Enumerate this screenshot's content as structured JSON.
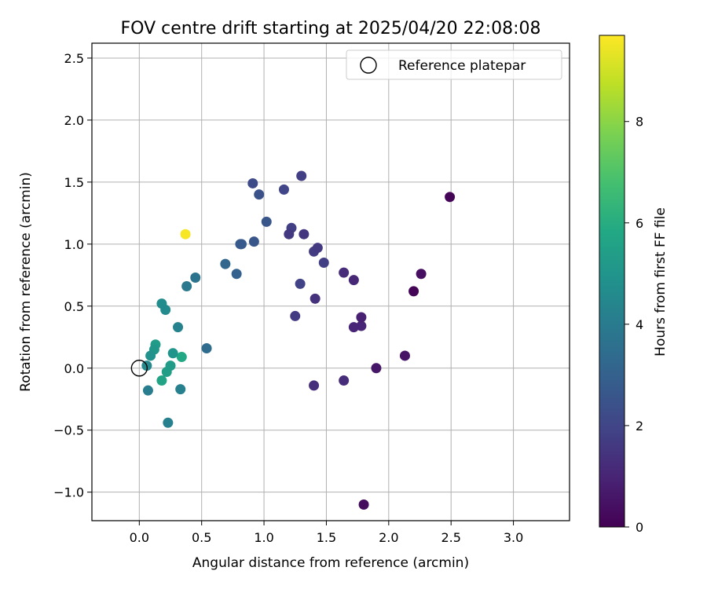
{
  "chart_data": {
    "type": "scatter",
    "title": "FOV centre drift starting at 2025/04/20 22:08:08",
    "xlabel": "Angular distance from reference (arcmin)",
    "ylabel": "Rotation from reference (arcmin)",
    "xlim": [
      -0.38,
      3.45
    ],
    "ylim": [
      -1.23,
      2.62
    ],
    "x_ticks": [
      0.0,
      0.5,
      1.0,
      1.5,
      2.0,
      2.5,
      3.0
    ],
    "x_tick_labels": [
      "0.0",
      "0.5",
      "1.0",
      "1.5",
      "2.0",
      "2.5",
      "3.0"
    ],
    "y_ticks": [
      -1.0,
      -0.5,
      0.0,
      0.5,
      1.0,
      1.5,
      2.0,
      2.5
    ],
    "y_tick_labels": [
      "−1.0",
      "−0.5",
      "0.0",
      "0.5",
      "1.0",
      "1.5",
      "2.0",
      "2.5"
    ],
    "grid": true,
    "legend": {
      "placement": "top-right",
      "entries": [
        {
          "label": "Reference platepar",
          "marker": "open-circle"
        }
      ]
    },
    "reference_point": {
      "x": 0.0,
      "y": 0.0
    },
    "colorbar": {
      "label": "Hours from first FF file",
      "min": 0,
      "max": 9.7,
      "ticks": [
        0,
        2,
        4,
        6,
        8
      ],
      "tick_labels": [
        "0",
        "2",
        "4",
        "6",
        "8"
      ],
      "colormap": "viridis",
      "colors": [
        "#440154",
        "#482475",
        "#414487",
        "#355f8d",
        "#2a788e",
        "#21918c",
        "#22a884",
        "#44bf70",
        "#7ad151",
        "#bddf26",
        "#fde725"
      ]
    },
    "series": [
      {
        "points": [
          {
            "x": 2.49,
            "y": 1.38,
            "c": 0.1
          },
          {
            "x": 2.2,
            "y": 0.62,
            "c": 0.1
          },
          {
            "x": 1.8,
            "y": -1.1,
            "c": 0.3
          },
          {
            "x": 2.26,
            "y": 0.76,
            "c": 0.4
          },
          {
            "x": 2.13,
            "y": 0.1,
            "c": 0.5
          },
          {
            "x": 1.9,
            "y": 0.0,
            "c": 0.6
          },
          {
            "x": 1.78,
            "y": 0.41,
            "c": 0.9
          },
          {
            "x": 1.78,
            "y": 0.34,
            "c": 1.0
          },
          {
            "x": 1.72,
            "y": 0.33,
            "c": 1.0
          },
          {
            "x": 1.72,
            "y": 0.71,
            "c": 1.1
          },
          {
            "x": 1.64,
            "y": 0.77,
            "c": 1.2
          },
          {
            "x": 1.64,
            "y": -0.1,
            "c": 1.2
          },
          {
            "x": 1.4,
            "y": -0.14,
            "c": 1.3
          },
          {
            "x": 1.41,
            "y": 0.56,
            "c": 1.4
          },
          {
            "x": 1.25,
            "y": 0.42,
            "c": 1.7
          },
          {
            "x": 1.29,
            "y": 0.68,
            "c": 1.9
          },
          {
            "x": 1.48,
            "y": 0.85,
            "c": 1.8
          },
          {
            "x": 1.4,
            "y": 0.94,
            "c": 1.7
          },
          {
            "x": 1.43,
            "y": 0.97,
            "c": 1.6
          },
          {
            "x": 1.32,
            "y": 1.08,
            "c": 1.5
          },
          {
            "x": 1.2,
            "y": 1.08,
            "c": 1.6
          },
          {
            "x": 1.22,
            "y": 1.13,
            "c": 1.8
          },
          {
            "x": 1.16,
            "y": 1.44,
            "c": 2.0
          },
          {
            "x": 1.3,
            "y": 1.55,
            "c": 1.8
          },
          {
            "x": 0.91,
            "y": 1.49,
            "c": 2.2
          },
          {
            "x": 0.96,
            "y": 1.4,
            "c": 2.4
          },
          {
            "x": 1.02,
            "y": 1.18,
            "c": 2.6
          },
          {
            "x": 0.92,
            "y": 1.02,
            "c": 2.6
          },
          {
            "x": 0.81,
            "y": 1.0,
            "c": 2.7
          },
          {
            "x": 0.82,
            "y": 1.0,
            "c": 2.8
          },
          {
            "x": 0.78,
            "y": 0.76,
            "c": 3.0
          },
          {
            "x": 0.69,
            "y": 0.84,
            "c": 3.2
          },
          {
            "x": 0.54,
            "y": 0.16,
            "c": 3.4
          },
          {
            "x": 0.45,
            "y": 0.73,
            "c": 3.7
          },
          {
            "x": 0.38,
            "y": 0.66,
            "c": 3.9
          },
          {
            "x": 0.07,
            "y": -0.18,
            "c": 4.1
          },
          {
            "x": 0.23,
            "y": -0.44,
            "c": 4.2
          },
          {
            "x": 0.33,
            "y": -0.17,
            "c": 4.2
          },
          {
            "x": 0.31,
            "y": 0.33,
            "c": 4.3
          },
          {
            "x": 0.06,
            "y": 0.02,
            "c": 4.5
          },
          {
            "x": 0.21,
            "y": 0.47,
            "c": 4.6
          },
          {
            "x": 0.18,
            "y": 0.52,
            "c": 4.7
          },
          {
            "x": 0.09,
            "y": 0.1,
            "c": 4.9
          },
          {
            "x": 0.27,
            "y": 0.12,
            "c": 5.0
          },
          {
            "x": 0.12,
            "y": 0.15,
            "c": 5.1
          },
          {
            "x": 0.13,
            "y": 0.19,
            "c": 5.3
          },
          {
            "x": 0.25,
            "y": 0.02,
            "c": 5.3
          },
          {
            "x": 0.22,
            "y": -0.03,
            "c": 5.4
          },
          {
            "x": 0.18,
            "y": -0.1,
            "c": 5.6
          },
          {
            "x": 0.34,
            "y": 0.09,
            "c": 5.8
          },
          {
            "x": 0.37,
            "y": 1.08,
            "c": 9.6
          }
        ]
      }
    ]
  }
}
